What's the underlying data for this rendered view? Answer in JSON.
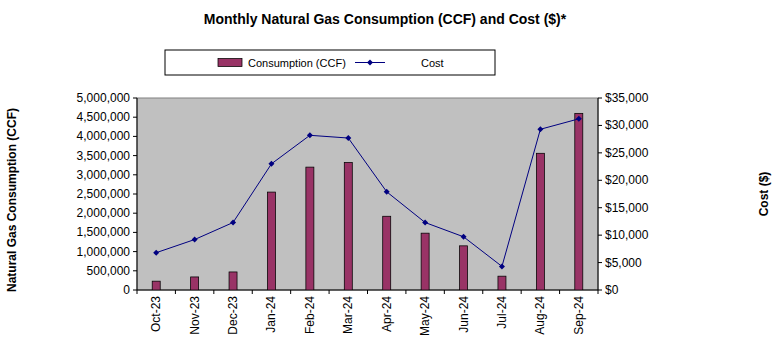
{
  "chart_data": {
    "type": "bar",
    "title": "Monthly Natural Gas Consumption (CCF) and Cost ($)*",
    "y_label": "Natural Gas Consumption (CCF)",
    "y2_label": "Cost ($)",
    "categories": [
      "Oct-23",
      "Nov-23",
      "Dec-23",
      "Jan-24",
      "Feb-24",
      "Mar-24",
      "Apr-24",
      "May-24",
      "Jun-24",
      "Jul-24",
      "Aug-24",
      "Sep-24"
    ],
    "series": [
      {
        "name": "Consumption (CCF)",
        "type": "bar",
        "color": "#993366",
        "values": [
          230000,
          340000,
          470000,
          2550000,
          3200000,
          3320000,
          1920000,
          1480000,
          1150000,
          360000,
          3560000,
          4600000
        ]
      },
      {
        "name": "Cost",
        "type": "line",
        "color": "#000080",
        "marker": "diamond",
        "axis": "y2",
        "values": [
          6800,
          9200,
          12300,
          23000,
          28200,
          27700,
          17900,
          12300,
          9700,
          4300,
          29300,
          31200
        ]
      }
    ],
    "ylim": [
      0,
      5000000
    ],
    "yticks": [
      0,
      {
        "value": 500000,
        "label": "500,000"
      },
      {
        "value": 1000000,
        "label": "1,000,000"
      },
      {
        "value": 1500000,
        "label": "1,500,000"
      },
      {
        "value": 2000000,
        "label": "2,000,000"
      },
      {
        "value": 2500000,
        "label": "2,500,000"
      },
      {
        "value": 3000000,
        "label": "3,000,000"
      },
      {
        "value": 3500000,
        "label": "3,500,000"
      },
      {
        "value": 4000000,
        "label": "4,000,000"
      },
      {
        "value": 4500000,
        "label": "4,500,000"
      },
      {
        "value": 5000000,
        "label": "5,000,000"
      }
    ],
    "y2lim": [
      0,
      35000
    ],
    "y2ticks": [
      {
        "value": 0,
        "label": "$0"
      },
      {
        "value": 5000,
        "label": "$5,000"
      },
      {
        "value": 10000,
        "label": "$10,000"
      },
      {
        "value": 15000,
        "label": "$15,000"
      },
      {
        "value": 20000,
        "label": "$20,000"
      },
      {
        "value": 25000,
        "label": "$25,000"
      },
      {
        "value": 30000,
        "label": "$30,000"
      },
      {
        "value": 35000,
        "label": "$35,000"
      }
    ],
    "grid": false,
    "legend": "top"
  }
}
